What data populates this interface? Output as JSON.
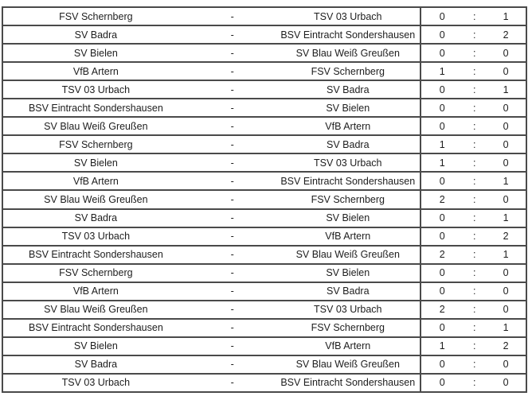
{
  "colors": {
    "border": "#4a4a4a",
    "text": "#1e1e1e",
    "background": "#ffffff"
  },
  "table": {
    "team_separator": "-",
    "score_separator": ":",
    "matches": [
      {
        "home": "FSV Schernberg",
        "away": "TSV 03 Urbach",
        "home_score": "0",
        "away_score": "1"
      },
      {
        "home": "SV Badra",
        "away": "BSV Eintracht Sondershausen",
        "home_score": "0",
        "away_score": "2"
      },
      {
        "home": "SV Bielen",
        "away": "SV Blau Weiß Greußen",
        "home_score": "0",
        "away_score": "0"
      },
      {
        "home": "VfB Artern",
        "away": "FSV Schernberg",
        "home_score": "1",
        "away_score": "0"
      },
      {
        "home": "TSV 03 Urbach",
        "away": "SV Badra",
        "home_score": "0",
        "away_score": "1"
      },
      {
        "home": "BSV Eintracht Sondershausen",
        "away": "SV Bielen",
        "home_score": "0",
        "away_score": "0"
      },
      {
        "home": "SV Blau Weiß Greußen",
        "away": "VfB Artern",
        "home_score": "0",
        "away_score": "0"
      },
      {
        "home": "FSV Schernberg",
        "away": "SV Badra",
        "home_score": "1",
        "away_score": "0"
      },
      {
        "home": "SV Bielen",
        "away": "TSV 03 Urbach",
        "home_score": "1",
        "away_score": "0"
      },
      {
        "home": "VfB Artern",
        "away": "BSV Eintracht Sondershausen",
        "home_score": "0",
        "away_score": "1"
      },
      {
        "home": "SV Blau Weiß Greußen",
        "away": "FSV Schernberg",
        "home_score": "2",
        "away_score": "0"
      },
      {
        "home": "SV Badra",
        "away": "SV Bielen",
        "home_score": "0",
        "away_score": "1"
      },
      {
        "home": "TSV 03 Urbach",
        "away": "VfB Artern",
        "home_score": "0",
        "away_score": "2"
      },
      {
        "home": "BSV Eintracht Sondershausen",
        "away": "SV Blau Weiß Greußen",
        "home_score": "2",
        "away_score": "1"
      },
      {
        "home": "FSV Schernberg",
        "away": "SV Bielen",
        "home_score": "0",
        "away_score": "0"
      },
      {
        "home": "VfB Artern",
        "away": "SV Badra",
        "home_score": "0",
        "away_score": "0"
      },
      {
        "home": "SV Blau Weiß Greußen",
        "away": "TSV 03 Urbach",
        "home_score": "2",
        "away_score": "0"
      },
      {
        "home": "BSV Eintracht Sondershausen",
        "away": "FSV Schernberg",
        "home_score": "0",
        "away_score": "1"
      },
      {
        "home": "SV Bielen",
        "away": "VfB Artern",
        "home_score": "1",
        "away_score": "2"
      },
      {
        "home": "SV Badra",
        "away": "SV Blau Weiß Greußen",
        "home_score": "0",
        "away_score": "0"
      },
      {
        "home": "TSV 03 Urbach",
        "away": "BSV Eintracht Sondershausen",
        "home_score": "0",
        "away_score": "0"
      }
    ]
  }
}
